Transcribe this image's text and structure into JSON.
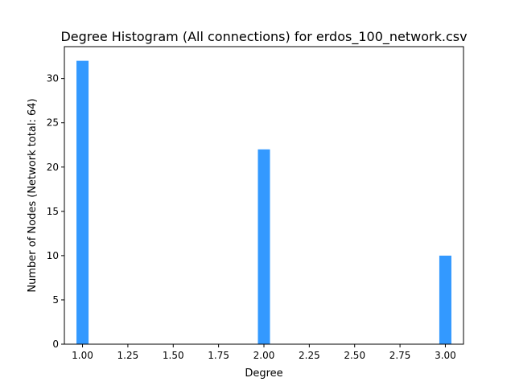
{
  "chart_data": {
    "type": "bar",
    "title": "Degree Histogram (All connections) for erdos_100_network.csv",
    "xlabel": "Degree",
    "ylabel": "Number of Nodes (Network total: 64)",
    "x": [
      1,
      2,
      3
    ],
    "values": [
      32,
      22,
      10
    ],
    "xlim": [
      0.9,
      3.1
    ],
    "ylim": [
      0,
      33.6
    ],
    "xticks": [
      1.0,
      1.25,
      1.5,
      1.75,
      2.0,
      2.25,
      2.5,
      2.75,
      3.0
    ],
    "xtick_labels": [
      "1.00",
      "1.25",
      "1.50",
      "1.75",
      "2.00",
      "2.25",
      "2.50",
      "2.75",
      "3.00"
    ],
    "yticks": [
      0,
      5,
      10,
      15,
      20,
      25,
      30
    ],
    "ytick_labels": [
      "0",
      "5",
      "10",
      "15",
      "20",
      "25",
      "30"
    ],
    "bar_color": "#3399ff",
    "grid": false,
    "legend": "none"
  }
}
